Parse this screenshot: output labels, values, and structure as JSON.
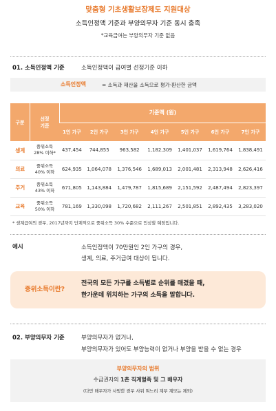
{
  "header": {
    "title": "맞춤형 기초생활보장제도 지원대상",
    "subtitle": "소득인정액 기준과 부양의무자 기준 동시 충족",
    "note": "*교육급여는 부양의무자 기준 없음"
  },
  "section1": {
    "label": "01. 소득인정액 기준",
    "text": "소득인정액이 급여별 선정기준 이하",
    "definition": {
      "term": "소득인정액",
      "text": "= 소득과 재산을 소득으로 평가·환산한 금액"
    }
  },
  "table": {
    "header": {
      "category": "구분",
      "criteria": [
        "선정",
        "기준"
      ],
      "amount": "기준액 (원)",
      "columns": [
        "1인 가구",
        "2인 가구",
        "3인 가구",
        "4인 가구",
        "5인 가구",
        "6인 가구",
        "7인 가구"
      ]
    },
    "rows": [
      {
        "category": "생계",
        "criteria": [
          "중위소득",
          "28% 이하*"
        ],
        "values": [
          "437,454",
          "744,855",
          "963,582",
          "1,182,309",
          "1,401,037",
          "1,619,764",
          "1,838,491"
        ]
      },
      {
        "category": "의료",
        "criteria": [
          "중위소득",
          "40% 이하"
        ],
        "values": [
          "624,935",
          "1,064,078",
          "1,376,546",
          "1,689,013",
          "2,001,481",
          "2,313,948",
          "2,626,416"
        ]
      },
      {
        "category": "주거",
        "criteria": [
          "중위소득",
          "43% 이하"
        ],
        "values": [
          "671,805",
          "1,143,884",
          "1,479,787",
          "1,815,689",
          "2,151,592",
          "2,487,494",
          "2,823,397"
        ]
      },
      {
        "category": "교육",
        "criteria": [
          "중위소득",
          "50% 이하"
        ],
        "values": [
          "781,169",
          "1,330,098",
          "1,720,682",
          "2,111,267",
          "2,501,851",
          "2,892,435",
          "3,283,020"
        ]
      }
    ],
    "footnote": "* 생계급여의 경우, 2017년까지 단계적으로 중위소득 30% 수준으로 인상할 예정입니다."
  },
  "example": {
    "label": "예시",
    "lines": [
      "소득인정액이 70만원인 2인 가구의 경우,",
      "생계, 의료, 주거급여 대상이 됩니다."
    ]
  },
  "callout": {
    "term": "중위소득이란?",
    "lines": [
      "전국의 모든 가구를 소득별로 순위를 매겼을 때,",
      "한가운데 위치하는 가구의 소득을 말합니다."
    ]
  },
  "section2": {
    "label": "02. 부양의무자 기준",
    "lines": [
      "부양의무자가 없거나,",
      "부양의무자가 있어도 부양능력이 없거나 부양을 받을 수 없는 경우"
    ],
    "box": {
      "title": "부양의무자의 범위",
      "text": "수급권자의 ",
      "bold": "1촌 직계혈족 및 그 배우자",
      "note": "(다만 배우자가 사망한 경우 사위 며느리 계부 계모는 제외)"
    }
  }
}
